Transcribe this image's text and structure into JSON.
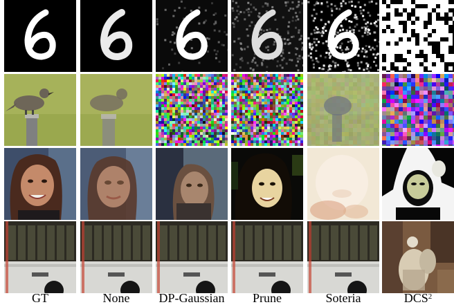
{
  "columns": [
    "GT",
    "None",
    "DP-Gaussian",
    "Prune",
    "Soteria",
    "DCS"
  ],
  "dcs_superscript": "2",
  "rows": [
    {
      "subject": "mnist-digit-6"
    },
    {
      "subject": "cifar-bird-on-post"
    },
    {
      "subject": "celeba-woman-face"
    },
    {
      "subject": "bus-side"
    }
  ],
  "cells": [
    [
      "clean",
      "clean-blurred",
      "light-noise",
      "medium-noise",
      "heavy-noise",
      "destroyed-noise"
    ],
    [
      "clean",
      "blurred",
      "color-noise",
      "color-noise",
      "blurred-noisy",
      "color-noise-blotchy"
    ],
    [
      "clean",
      "blurred",
      "distorted",
      "high-contrast",
      "washed-out",
      "inverted-contrast"
    ],
    [
      "clean",
      "clean",
      "clean",
      "clean",
      "clean",
      "unrelated-image"
    ]
  ]
}
